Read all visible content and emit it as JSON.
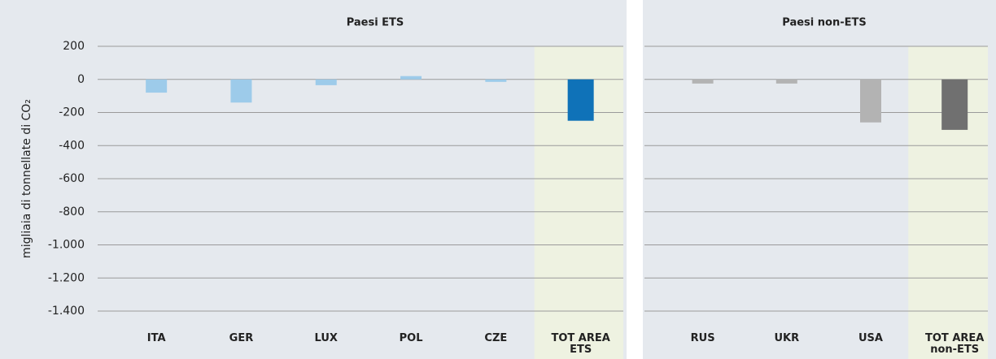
{
  "chart_data": [
    {
      "type": "bar",
      "title": "Paesi ETS",
      "ylabel": "migliaia di tonnellate di CO₂",
      "categories": [
        "ITA",
        "GER",
        "LUX",
        "POL",
        "CZE",
        "TOT AREA ETS"
      ],
      "values": [
        -80,
        -140,
        -35,
        20,
        -15,
        -250
      ],
      "colors": [
        "#9dcbea",
        "#9dcbea",
        "#9dcbea",
        "#9dcbea",
        "#9dcbea",
        "#0f72b8"
      ],
      "ylim": [
        -1400,
        200
      ],
      "yticks": [
        200,
        0,
        -200,
        -400,
        -600,
        -800,
        {
          "value": -1000,
          "label": "-1.000"
        },
        {
          "value": -1200,
          "label": "-1.200"
        },
        {
          "value": -1400,
          "label": "-1.400"
        }
      ],
      "grid": true
    },
    {
      "type": "bar",
      "title": "Paesi non-ETS",
      "categories": [
        "RUS",
        "UKR",
        "USA",
        "TOT AREA non-ETS"
      ],
      "values": [
        -25,
        -25,
        -260,
        -305
      ],
      "colors": [
        "#b3b3b3",
        "#b3b3b3",
        "#b3b3b3",
        "#707070"
      ],
      "grid": true
    }
  ]
}
